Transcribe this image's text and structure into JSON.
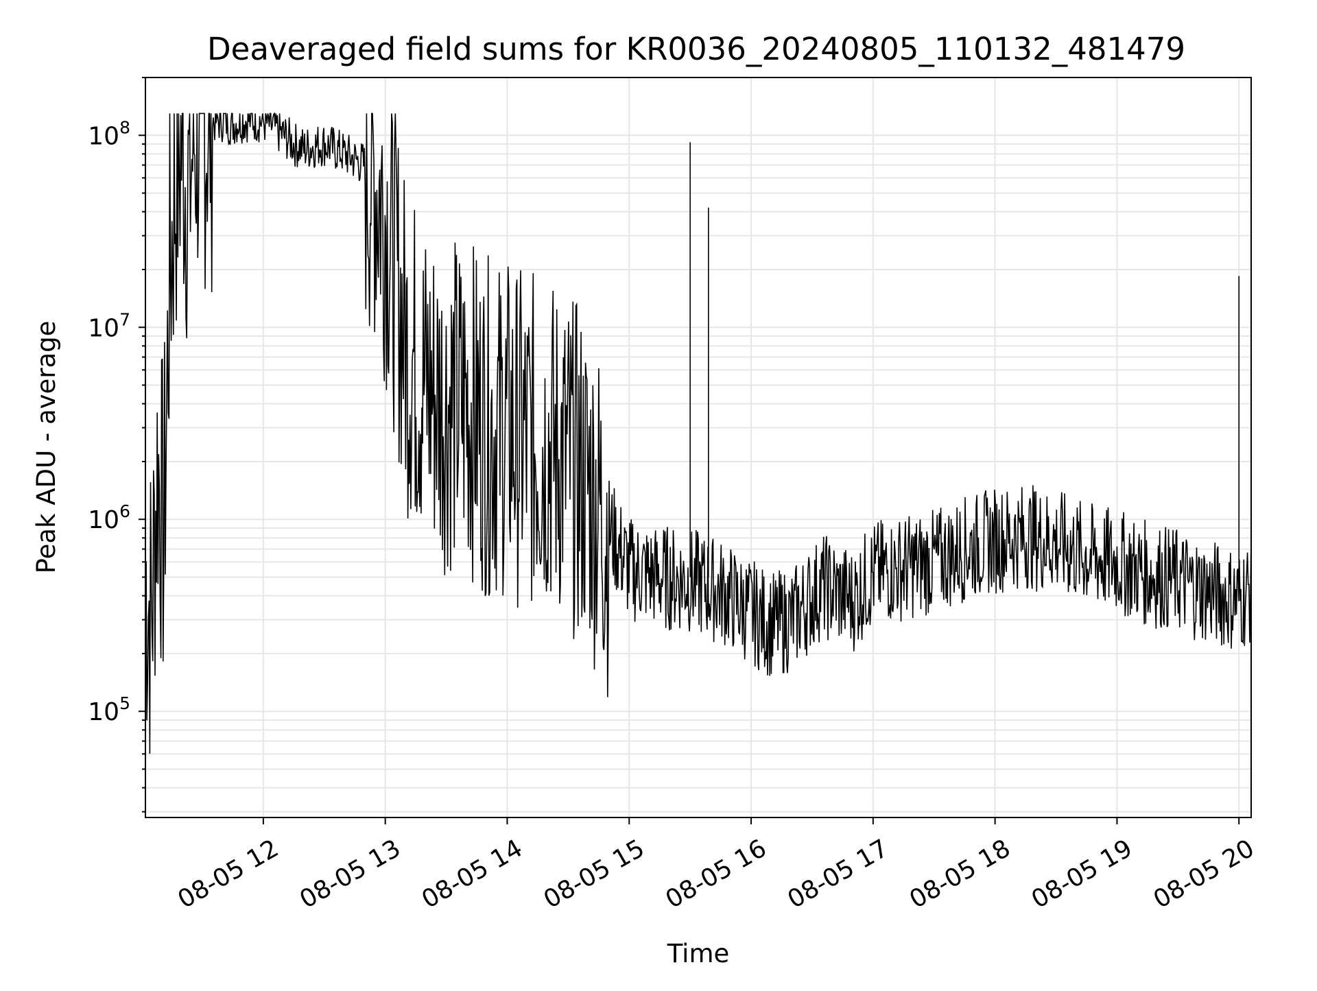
{
  "chart_data": {
    "type": "line",
    "title": "Deaveraged field sums for KR0036_20240805_110132_481479",
    "xlabel": "Time",
    "ylabel": "Peak ADU - average",
    "x_scale": "time",
    "y_scale": "log",
    "xlim": [
      "2024-08-05 11:02",
      "2024-08-05 20:06"
    ],
    "ylim": [
      28000,
      200000000
    ],
    "x_ticks": [
      "08-05 12",
      "08-05 13",
      "08-05 14",
      "08-05 15",
      "08-05 16",
      "08-05 17",
      "08-05 18",
      "08-05 19",
      "08-05 20"
    ],
    "y_ticks": [
      {
        "base": "10",
        "exp": "5"
      },
      {
        "base": "10",
        "exp": "6"
      },
      {
        "base": "10",
        "exp": "7"
      },
      {
        "base": "10",
        "exp": "8"
      }
    ],
    "grid": true,
    "line_color": "#000000",
    "series": [
      {
        "x": [
          "2024-08-05 11:02",
          "2024-08-05 11:05",
          "2024-08-05 11:08",
          "2024-08-05 11:11",
          "2024-08-05 11:14",
          "2024-08-05 11:17",
          "2024-08-05 11:20",
          "2024-08-05 11:23",
          "2024-08-05 11:26",
          "2024-08-05 11:29",
          "2024-08-05 11:32",
          "2024-08-05 11:35",
          "2024-08-05 11:40",
          "2024-08-05 11:45",
          "2024-08-05 11:50",
          "2024-08-05 11:55",
          "2024-08-05 12:00",
          "2024-08-05 12:05",
          "2024-08-05 12:10",
          "2024-08-05 12:15",
          "2024-08-05 12:20",
          "2024-08-05 12:25",
          "2024-08-05 12:30",
          "2024-08-05 12:35",
          "2024-08-05 12:40",
          "2024-08-05 12:45",
          "2024-08-05 12:50",
          "2024-08-05 12:55",
          "2024-08-05 13:00",
          "2024-08-05 13:05",
          "2024-08-05 13:10",
          "2024-08-05 13:20",
          "2024-08-05 13:30",
          "2024-08-05 13:40",
          "2024-08-05 13:50",
          "2024-08-05 14:00",
          "2024-08-05 14:10",
          "2024-08-05 14:20",
          "2024-08-05 14:30",
          "2024-08-05 14:40",
          "2024-08-05 14:50",
          "2024-08-05 15:00",
          "2024-08-05 15:15",
          "2024-08-05 15:30",
          "2024-08-05 15:45",
          "2024-08-05 16:00",
          "2024-08-05 16:10",
          "2024-08-05 16:20",
          "2024-08-05 16:35",
          "2024-08-05 16:50",
          "2024-08-05 17:00",
          "2024-08-05 17:15",
          "2024-08-05 17:30",
          "2024-08-05 17:45",
          "2024-08-05 18:00",
          "2024-08-05 18:15",
          "2024-08-05 18:30",
          "2024-08-05 18:45",
          "2024-08-05 19:00",
          "2024-08-05 19:15",
          "2024-08-05 19:30",
          "2024-08-05 19:45",
          "2024-08-05 20:00",
          "2024-08-05 20:06"
        ],
        "y": [
          500000,
          300000,
          2000000,
          800000,
          20000000,
          60000000,
          90000000,
          50000000,
          100000000,
          110000000,
          115000000,
          118000000,
          120000000,
          115000000,
          120000000,
          121000000,
          118000000,
          110000000,
          100000000,
          90000000,
          85000000,
          88000000,
          90000000,
          85000000,
          80000000,
          75000000,
          70000000,
          60000000,
          40000000,
          20000000,
          8000000,
          5000000,
          4000000,
          4000000,
          3000000,
          3000000,
          2500000,
          2500000,
          2000000,
          1500000,
          900000,
          550000,
          500000,
          480000,
          420000,
          330000,
          280000,
          300000,
          450000,
          380000,
          520000,
          560000,
          600000,
          700000,
          780000,
          820000,
          760000,
          650000,
          600000,
          520000,
          480000,
          420000,
          380000,
          430000
        ]
      }
    ],
    "annotations": [
      {
        "x": "2024-08-05 15:30",
        "y": 92000000,
        "label": ""
      },
      {
        "x": "2024-08-05 15:39",
        "y": 42000000,
        "label": ""
      },
      {
        "x": "2024-08-05 20:00",
        "y": 18500000,
        "label": ""
      }
    ]
  }
}
